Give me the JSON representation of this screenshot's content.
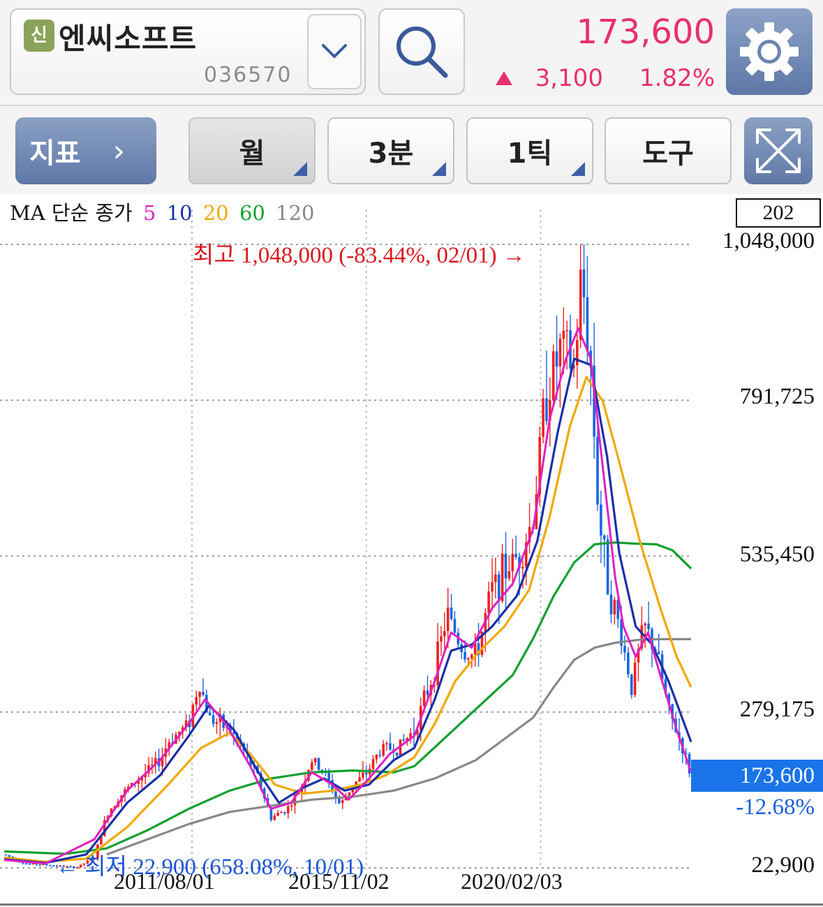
{
  "header": {
    "badge": "신",
    "stock_name": "엔씨소프트",
    "stock_code": "036570",
    "price": "173,600",
    "change_amount": "3,100",
    "change_pct": "1.82%",
    "up_color": "#e8306a",
    "icons": [
      "chevron-down-icon",
      "search-icon",
      "gear-icon"
    ]
  },
  "toolbar": {
    "indicator_label": "지표",
    "indicator_chevron": "›",
    "period_month": "월",
    "period_3min": "3분",
    "period_1tick": "1틱",
    "tools": "도구",
    "icons": [
      "chevron-right-icon",
      "fullscreen-icon"
    ]
  },
  "chart_data": {
    "type": "candlestick",
    "title": "",
    "ma_legend": {
      "prefix": "MA 단순 종가",
      "periods": [
        {
          "label": "5",
          "color": "#e020c0"
        },
        {
          "label": "10",
          "color": "#1a2fa8"
        },
        {
          "label": "20",
          "color": "#f0a800"
        },
        {
          "label": "60",
          "color": "#10a030"
        },
        {
          "label": "120",
          "color": "#888888"
        }
      ]
    },
    "bar_count": "202",
    "y_ticks": [
      "1,048,000",
      "791,725",
      "535,450",
      "279,175",
      "22,900"
    ],
    "y_tick_values": [
      1048000,
      791725,
      535450,
      279175,
      22900
    ],
    "ylim": [
      22900,
      1048000
    ],
    "x_ticks": [
      "2011/08/01",
      "2015/11/02",
      "2020/02/03"
    ],
    "current_price": "173,600",
    "current_pct": "-12.68%",
    "high_annotation": "최고 1,048,000 (-83.44%, 02/01) →",
    "low_annotation": "← 최저 22,900 (658.08%, 10/01)",
    "up_color": "#ee2222",
    "down_color": "#1a66e0",
    "grid": true,
    "close_path": [
      [
        2007.0,
        45000
      ],
      [
        2007.5,
        30000
      ],
      [
        2008.0,
        28000
      ],
      [
        2008.5,
        25000
      ],
      [
        2008.75,
        22900
      ],
      [
        2009.2,
        40000
      ],
      [
        2009.5,
        110000
      ],
      [
        2009.8,
        140000
      ],
      [
        2010.3,
        170000
      ],
      [
        2010.8,
        200000
      ],
      [
        2011.0,
        230000
      ],
      [
        2011.5,
        260000
      ],
      [
        2011.75,
        330000
      ],
      [
        2012.0,
        270000
      ],
      [
        2012.5,
        250000
      ],
      [
        2012.8,
        220000
      ],
      [
        2013.2,
        170000
      ],
      [
        2013.5,
        105000
      ],
      [
        2013.9,
        120000
      ],
      [
        2014.2,
        150000
      ],
      [
        2014.5,
        200000
      ],
      [
        2014.8,
        180000
      ],
      [
        2015.2,
        125000
      ],
      [
        2015.5,
        160000
      ],
      [
        2015.8,
        175000
      ],
      [
        2016.2,
        220000
      ],
      [
        2016.6,
        220000
      ],
      [
        2017.0,
        250000
      ],
      [
        2017.5,
        350000
      ],
      [
        2017.8,
        440000
      ],
      [
        2018.2,
        380000
      ],
      [
        2018.5,
        370000
      ],
      [
        2018.9,
        480000
      ],
      [
        2019.3,
        520000
      ],
      [
        2019.6,
        540000
      ],
      [
        2019.9,
        600000
      ],
      [
        2020.2,
        800000
      ],
      [
        2020.6,
        880000
      ],
      [
        2020.9,
        840000
      ],
      [
        2021.08,
        1000000
      ],
      [
        2021.3,
        850000
      ],
      [
        2021.5,
        600000
      ],
      [
        2021.75,
        480000
      ],
      [
        2022.0,
        420000
      ],
      [
        2022.3,
        320000
      ],
      [
        2022.6,
        420000
      ],
      [
        2022.9,
        380000
      ],
      [
        2023.2,
        280000
      ],
      [
        2023.5,
        230000
      ],
      [
        2023.75,
        173600
      ]
    ],
    "moving_averages": [
      {
        "period": "5",
        "points": [
          [
            2007.0,
            36000
          ],
          [
            2008.0,
            30000
          ],
          [
            2009.2,
            70000
          ],
          [
            2010.0,
            150000
          ],
          [
            2010.8,
            200000
          ],
          [
            2011.5,
            260000
          ],
          [
            2011.9,
            300000
          ],
          [
            2012.4,
            260000
          ],
          [
            2013.0,
            190000
          ],
          [
            2013.5,
            120000
          ],
          [
            2014.0,
            130000
          ],
          [
            2014.5,
            180000
          ],
          [
            2015.0,
            160000
          ],
          [
            2015.4,
            135000
          ],
          [
            2015.9,
            170000
          ],
          [
            2016.4,
            210000
          ],
          [
            2017.0,
            240000
          ],
          [
            2017.5,
            330000
          ],
          [
            2017.9,
            410000
          ],
          [
            2018.4,
            385000
          ],
          [
            2018.9,
            450000
          ],
          [
            2019.4,
            490000
          ],
          [
            2019.9,
            580000
          ],
          [
            2020.3,
            760000
          ],
          [
            2020.7,
            860000
          ],
          [
            2021.0,
            910000
          ],
          [
            2021.3,
            860000
          ],
          [
            2021.6,
            680000
          ],
          [
            2021.9,
            500000
          ],
          [
            2022.1,
            420000
          ],
          [
            2022.4,
            370000
          ],
          [
            2022.7,
            410000
          ],
          [
            2023.0,
            340000
          ],
          [
            2023.4,
            250000
          ],
          [
            2023.75,
            180000
          ]
        ]
      },
      {
        "period": "10",
        "points": [
          [
            2007.0,
            37000
          ],
          [
            2008.0,
            31000
          ],
          [
            2009.0,
            45000
          ],
          [
            2010.0,
            130000
          ],
          [
            2010.8,
            175000
          ],
          [
            2011.5,
            240000
          ],
          [
            2012.0,
            290000
          ],
          [
            2012.6,
            250000
          ],
          [
            2013.2,
            180000
          ],
          [
            2013.7,
            130000
          ],
          [
            2014.3,
            155000
          ],
          [
            2014.8,
            170000
          ],
          [
            2015.3,
            150000
          ],
          [
            2015.9,
            160000
          ],
          [
            2016.5,
            200000
          ],
          [
            2017.0,
            220000
          ],
          [
            2017.5,
            300000
          ],
          [
            2017.9,
            380000
          ],
          [
            2018.4,
            390000
          ],
          [
            2018.9,
            420000
          ],
          [
            2019.5,
            470000
          ],
          [
            2020.0,
            560000
          ],
          [
            2020.5,
            740000
          ],
          [
            2020.9,
            860000
          ],
          [
            2021.3,
            850000
          ],
          [
            2021.7,
            700000
          ],
          [
            2022.0,
            540000
          ],
          [
            2022.4,
            420000
          ],
          [
            2022.8,
            390000
          ],
          [
            2023.2,
            330000
          ],
          [
            2023.75,
            230000
          ]
        ]
      },
      {
        "period": "20",
        "points": [
          [
            2007.0,
            40000
          ],
          [
            2008.0,
            33000
          ],
          [
            2009.0,
            38000
          ],
          [
            2010.0,
            90000
          ],
          [
            2011.0,
            160000
          ],
          [
            2011.8,
            220000
          ],
          [
            2012.5,
            245000
          ],
          [
            2013.0,
            210000
          ],
          [
            2013.6,
            160000
          ],
          [
            2014.3,
            145000
          ],
          [
            2015.0,
            150000
          ],
          [
            2015.7,
            160000
          ],
          [
            2016.3,
            175000
          ],
          [
            2017.0,
            205000
          ],
          [
            2017.5,
            260000
          ],
          [
            2018.0,
            330000
          ],
          [
            2018.6,
            380000
          ],
          [
            2019.2,
            420000
          ],
          [
            2019.8,
            480000
          ],
          [
            2020.3,
            600000
          ],
          [
            2020.8,
            750000
          ],
          [
            2021.2,
            830000
          ],
          [
            2021.6,
            790000
          ],
          [
            2022.0,
            690000
          ],
          [
            2022.5,
            560000
          ],
          [
            2023.0,
            450000
          ],
          [
            2023.4,
            370000
          ],
          [
            2023.75,
            320000
          ]
        ]
      },
      {
        "period": "60",
        "points": [
          [
            2007.0,
            50000
          ],
          [
            2008.5,
            46000
          ],
          [
            2009.5,
            55000
          ],
          [
            2010.5,
            85000
          ],
          [
            2011.5,
            120000
          ],
          [
            2012.5,
            150000
          ],
          [
            2013.5,
            170000
          ],
          [
            2014.5,
            180000
          ],
          [
            2015.5,
            183000
          ],
          [
            2016.5,
            180000
          ],
          [
            2017.0,
            190000
          ],
          [
            2017.8,
            240000
          ],
          [
            2018.6,
            290000
          ],
          [
            2019.4,
            340000
          ],
          [
            2019.9,
            400000
          ],
          [
            2020.4,
            470000
          ],
          [
            2020.9,
            525000
          ],
          [
            2021.4,
            555000
          ],
          [
            2021.9,
            558000
          ],
          [
            2022.4,
            556000
          ],
          [
            2022.9,
            555000
          ],
          [
            2023.3,
            545000
          ],
          [
            2023.75,
            515000
          ]
        ]
      },
      {
        "period": "120",
        "points": [
          [
            2009.5,
            45000
          ],
          [
            2010.5,
            70000
          ],
          [
            2011.5,
            95000
          ],
          [
            2012.5,
            115000
          ],
          [
            2013.5,
            125000
          ],
          [
            2014.5,
            135000
          ],
          [
            2015.5,
            140000
          ],
          [
            2016.5,
            150000
          ],
          [
            2017.5,
            170000
          ],
          [
            2018.5,
            200000
          ],
          [
            2019.3,
            240000
          ],
          [
            2019.9,
            270000
          ],
          [
            2020.4,
            320000
          ],
          [
            2020.9,
            365000
          ],
          [
            2021.4,
            385000
          ],
          [
            2021.9,
            393000
          ],
          [
            2022.5,
            398000
          ],
          [
            2023.0,
            399000
          ],
          [
            2023.75,
            399000
          ]
        ]
      }
    ]
  }
}
